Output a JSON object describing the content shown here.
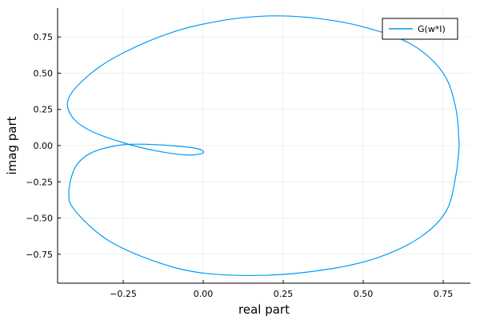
{
  "chart_data": {
    "type": "line",
    "title": "",
    "xlabel": "real part",
    "ylabel": "imag part",
    "xlim": [
      -0.455,
      0.835
    ],
    "ylim": [
      -0.95,
      0.95
    ],
    "xticks": [
      -0.25,
      0.0,
      0.25,
      0.5,
      0.75
    ],
    "xtick_labels": [
      "−0.25",
      "0.00",
      "0.25",
      "0.50",
      "0.75"
    ],
    "yticks": [
      -0.75,
      -0.5,
      -0.25,
      0.0,
      0.25,
      0.5,
      0.75
    ],
    "ytick_labels": [
      "−0.75",
      "−0.50",
      "−0.25",
      "0.00",
      "0.25",
      "0.50",
      "0.75"
    ],
    "grid": true,
    "legend_position": "top-right",
    "series": [
      {
        "name": "G(w*I)",
        "color": "#009AFA",
        "x": [
          0.8,
          0.79,
          0.75,
          0.65,
          0.5,
          0.35,
          0.2,
          0.05,
          -0.1,
          -0.25,
          -0.35,
          -0.42,
          -0.41,
          -0.35,
          -0.25,
          -0.15,
          -0.05,
          0.0,
          -0.02,
          -0.1,
          -0.2,
          -0.27,
          -0.35,
          -0.4,
          -0.42,
          -0.4,
          -0.3,
          -0.15,
          0.0,
          0.2,
          0.4,
          0.55,
          0.68,
          0.76,
          0.79,
          0.8
        ],
        "y": [
          0.0,
          0.25,
          0.5,
          0.7,
          0.82,
          0.88,
          0.895,
          0.86,
          0.78,
          0.64,
          0.5,
          0.33,
          0.2,
          0.1,
          0.02,
          -0.035,
          -0.065,
          -0.05,
          -0.02,
          0.0,
          0.01,
          0.0,
          -0.05,
          -0.15,
          -0.33,
          -0.45,
          -0.65,
          -0.8,
          -0.88,
          -0.895,
          -0.85,
          -0.77,
          -0.63,
          -0.45,
          -0.2,
          0.0
        ]
      }
    ]
  }
}
